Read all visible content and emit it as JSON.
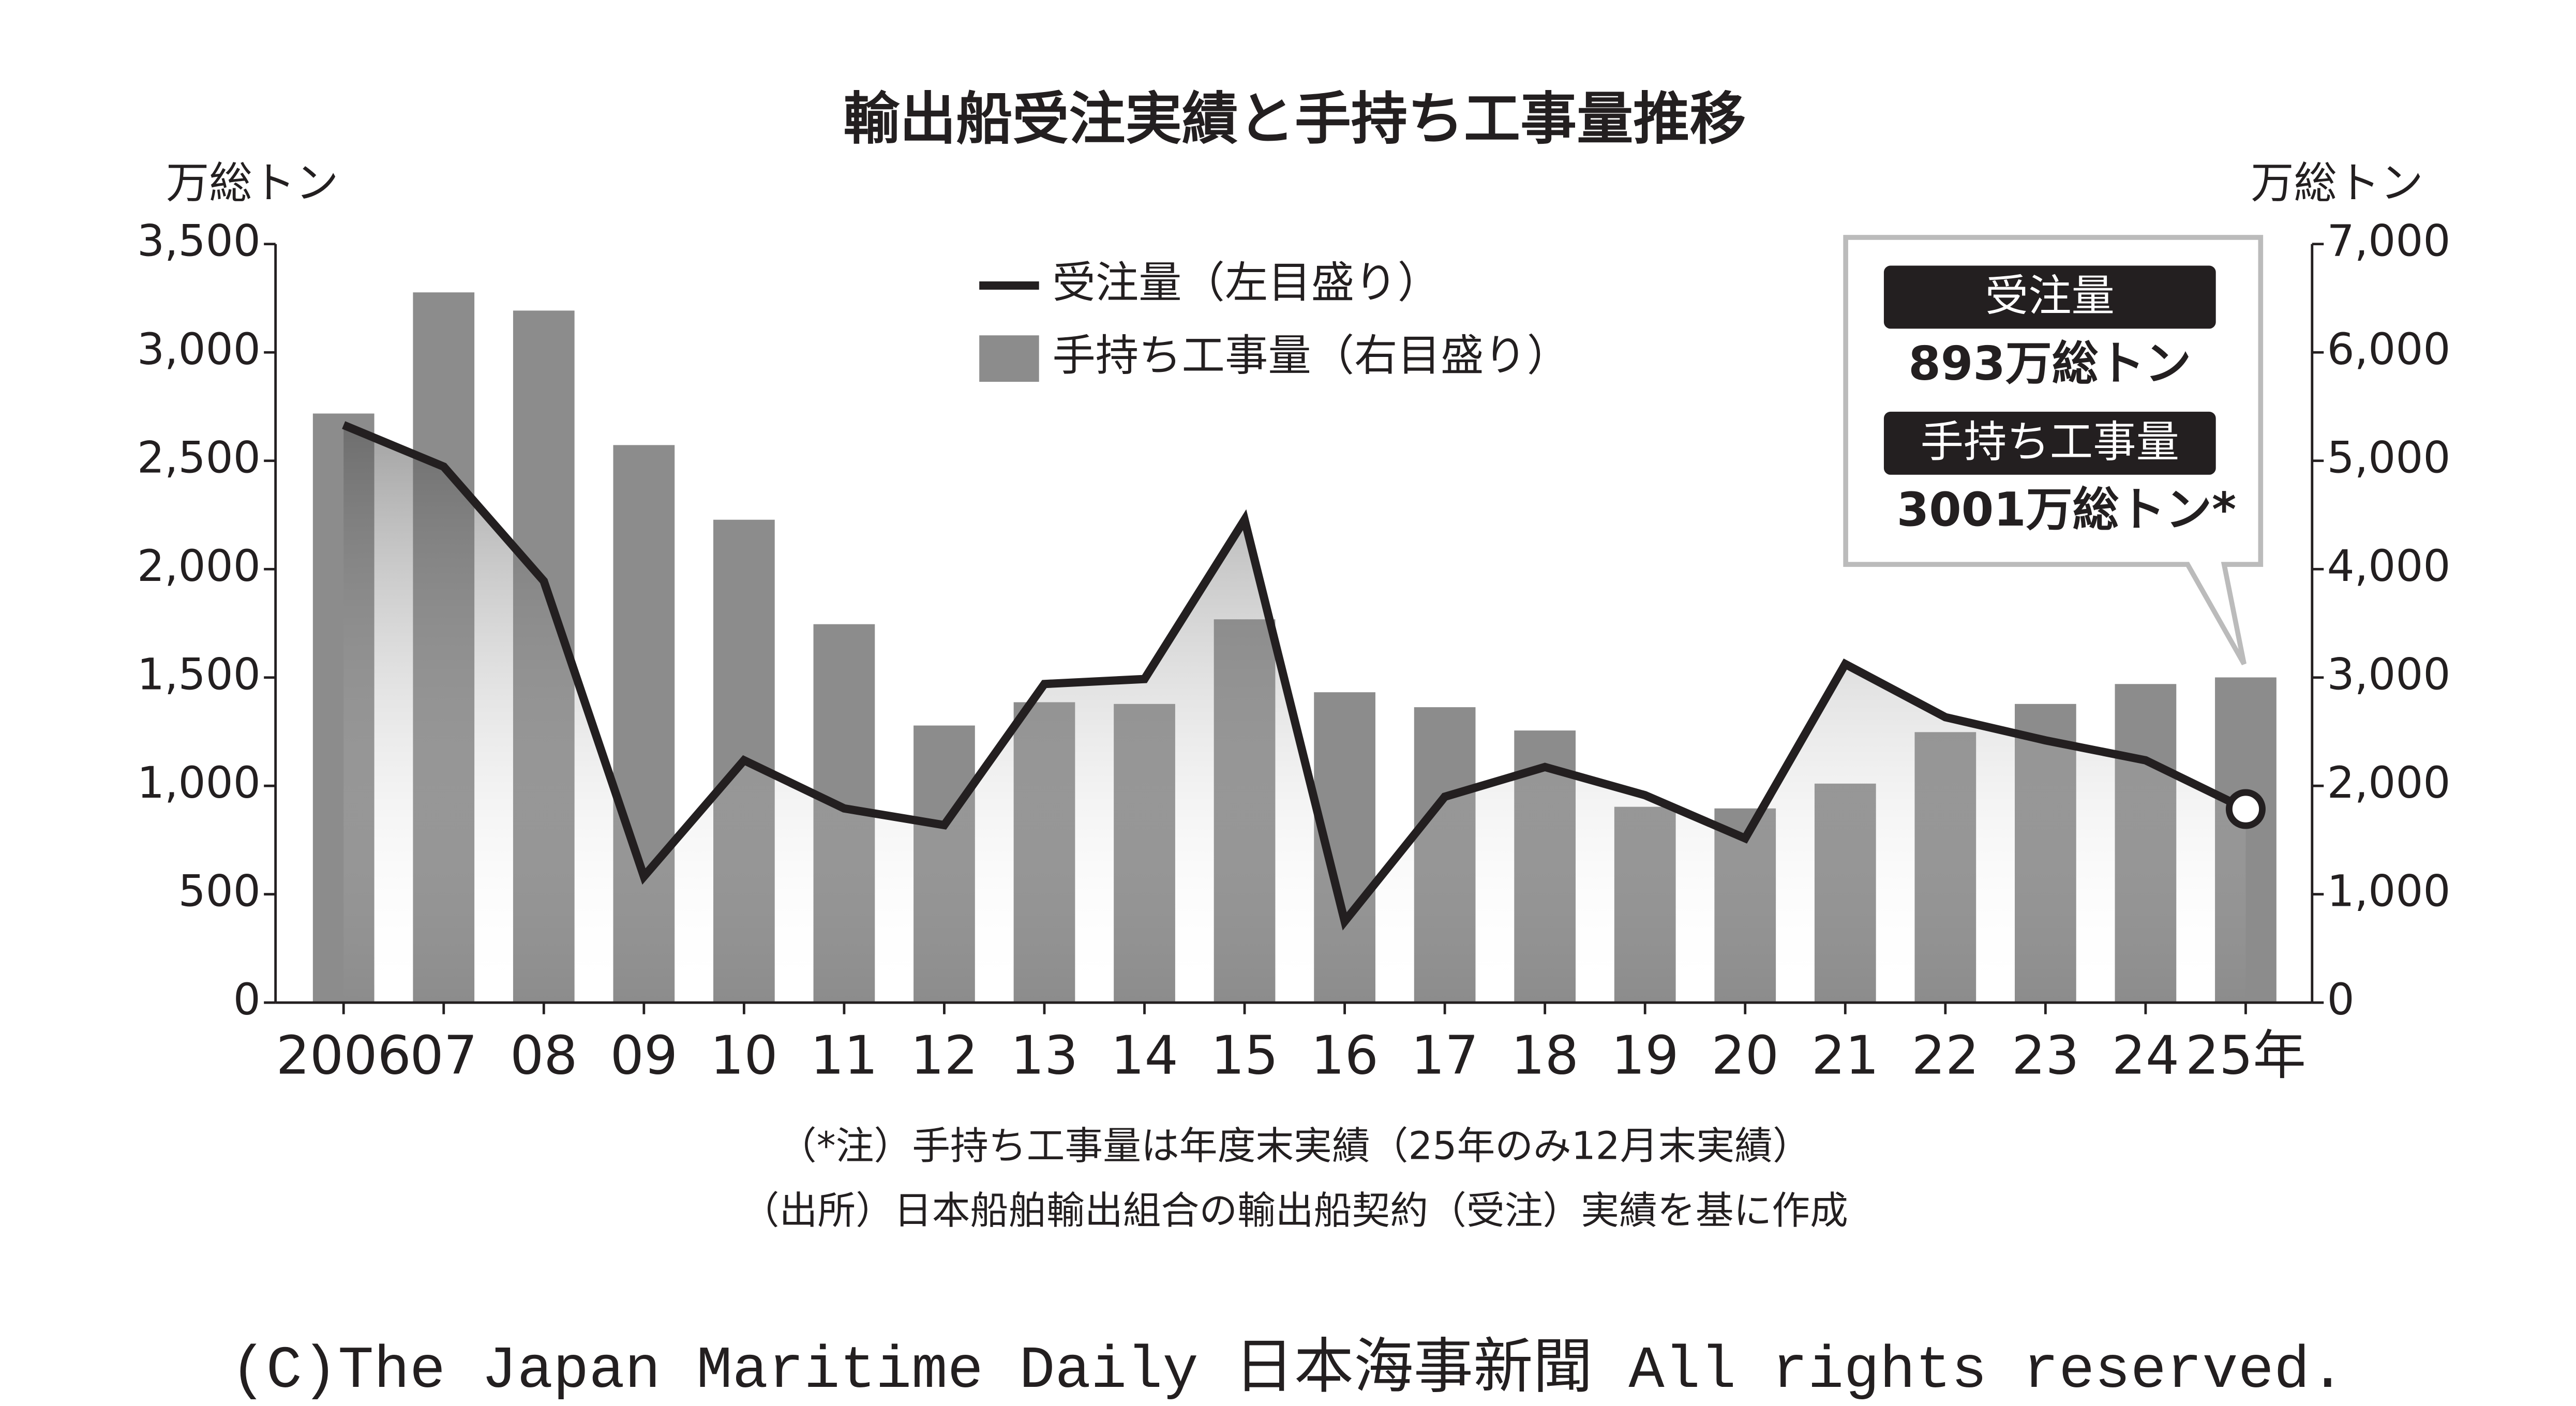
{
  "chart_data": {
    "type": "bar-line",
    "title": "輸出船受注実績と手持ち工事量推移",
    "ylabel": "万総トン",
    "y2label": "万総トン",
    "categories": [
      "2006",
      "07",
      "08",
      "09",
      "10",
      "11",
      "12",
      "13",
      "14",
      "15",
      "16",
      "17",
      "18",
      "19",
      "20",
      "21",
      "22",
      "23",
      "24",
      "25年"
    ],
    "series": [
      {
        "name": "受注量（左目盛り）",
        "type": "line",
        "color": "#231f20",
        "axis": "y",
        "values": [
          2665,
          2473,
          1945,
          582,
          1118,
          896,
          819,
          1470,
          1493,
          2228,
          375,
          950,
          1087,
          957,
          758,
          1562,
          1317,
          1210,
          1118,
          893
        ]
      },
      {
        "name": "手持ち工事量（右目盛り）",
        "type": "bar",
        "color": "#8c8c8c",
        "axis": "y2",
        "values": [
          5436,
          6554,
          6386,
          5145,
          4456,
          3492,
          2557,
          2772,
          2756,
          3537,
          2864,
          2726,
          2511,
          1807,
          1792,
          2021,
          2496,
          2756,
          2940,
          3001
        ]
      }
    ],
    "ylim": [
      0,
      3500
    ],
    "yticks": [
      0,
      500,
      {
        "value": 1000,
        "label": "1,000"
      },
      {
        "value": 1500,
        "label": "1,500"
      },
      {
        "value": 2000,
        "label": "2,000"
      },
      {
        "value": 2500,
        "label": "2,500"
      },
      {
        "value": 3000,
        "label": "3,000"
      },
      {
        "value": 3500,
        "label": "3,500"
      }
    ],
    "y2lim": [
      0,
      7000
    ],
    "y2ticks": [
      0,
      {
        "value": 1000,
        "label": "1,000"
      },
      {
        "value": 2000,
        "label": "2,000"
      },
      {
        "value": 3000,
        "label": "3,000"
      },
      {
        "value": 4000,
        "label": "4,000"
      },
      {
        "value": 5000,
        "label": "5,000"
      },
      {
        "value": 6000,
        "label": "6,000"
      },
      {
        "value": 7000,
        "label": "7,000"
      }
    ],
    "callout": {
      "label1": "受注量",
      "text1": "893万総トン",
      "label2": "手持ち工事量",
      "text2": "3001万総トン*"
    },
    "notes": [
      "（*注）手持ち工事量は年度末実績（25年のみ12月末実績）",
      "（出所）日本船舶輸出組合の輸出船契約（受注）実績を基に作成"
    ],
    "copyright": "(C)The Japan Maritime Daily 日本海事新聞 All rights reserved."
  }
}
